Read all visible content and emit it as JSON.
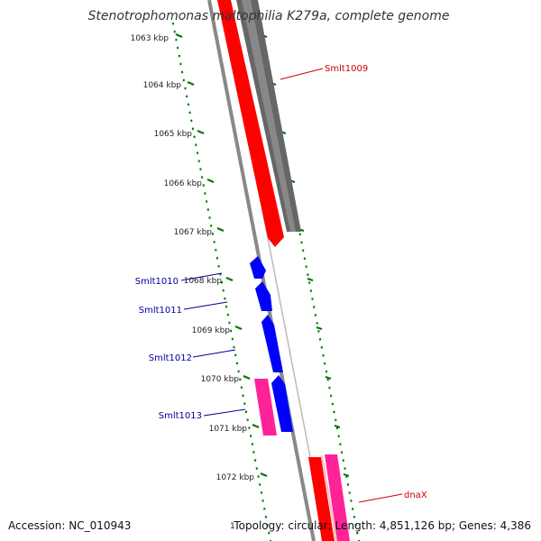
{
  "title": "Stenotrophomonas maltophilia K279a, complete genome",
  "accession": "Accession: NC_010943",
  "summary": "Topology: circular; Length: 4,851,126 bp; Genes: 4,386",
  "stray_tick_label": "1",
  "scale_labels": [
    "1063 kbp",
    "1064 kbp",
    "1065 kbp",
    "1066 kbp",
    "1067 kbp",
    "1068 kbp",
    "1069 kbp",
    "1070 kbp",
    "1071 kbp",
    "1072 kbp"
  ],
  "genes": [
    {
      "id": "smlt1009",
      "label": "Smlt1009",
      "color": "#cc0000"
    },
    {
      "id": "smlt1010",
      "label": "Smlt1010",
      "color": "#000099"
    },
    {
      "id": "smlt1011",
      "label": "Smlt1011",
      "color": "#000099"
    },
    {
      "id": "smlt1012",
      "label": "Smlt1012",
      "color": "#000099"
    },
    {
      "id": "smlt1013",
      "label": "Smlt1013",
      "color": "#000099"
    },
    {
      "id": "dnax",
      "label": "dnaX",
      "color": "#cc0000"
    }
  ],
  "colors": {
    "cds_forward": "#ff0000",
    "cds_reverse": "#0000ff",
    "trna": "#ff2299",
    "gc_track": "#666666",
    "backbone": "#888888",
    "ticks": "#007700"
  }
}
